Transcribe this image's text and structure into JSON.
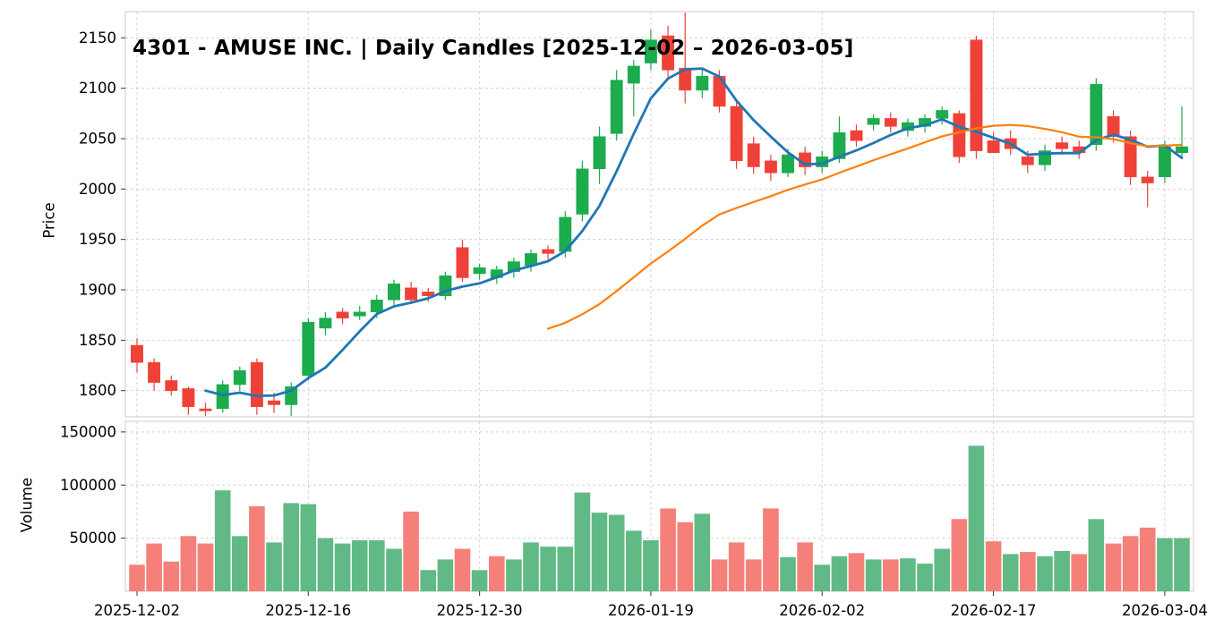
{
  "chart_data": {
    "type": "candlestick",
    "title": "4301 - AMUSE INC. | Daily Candles [2025-12-02 – 2026-03-05]",
    "ylabel_price": "Price",
    "ylabel_volume": "Volume",
    "price_ticks": [
      1800,
      1850,
      1900,
      1950,
      2000,
      2050,
      2100,
      2150
    ],
    "volume_ticks": [
      50000,
      100000,
      150000
    ],
    "price_ylim": [
      1774,
      2176
    ],
    "volume_ylim": [
      0,
      160000
    ],
    "x_tick_indices": [
      0,
      10,
      20,
      30,
      40,
      50,
      60
    ],
    "x_tick_labels": [
      "2025-12-02",
      "2025-12-16",
      "2025-12-30",
      "2026-01-19",
      "2026-02-02",
      "2026-02-17",
      "2026-03-04"
    ],
    "grid": true,
    "legend": "none",
    "colors": {
      "up": "#1cab4d",
      "down": "#ee4238",
      "vol_up": "#61ba86",
      "vol_down": "#f5807a",
      "ma_fast": "#1f77b4",
      "ma_slow": "#ff7f0e",
      "grid": "#c9c9c9",
      "spine": "#cccccc",
      "tick": "#333333"
    },
    "overlays": [
      {
        "name": "SMA5",
        "window": 5,
        "color_key": "ma_fast",
        "width": 2.8
      },
      {
        "name": "SMA25",
        "window": 25,
        "color_key": "ma_slow",
        "width": 2.2
      }
    ],
    "dates": [
      "2025-12-02",
      "2025-12-03",
      "2025-12-04",
      "2025-12-05",
      "2025-12-08",
      "2025-12-09",
      "2025-12-10",
      "2025-12-11",
      "2025-12-12",
      "2025-12-15",
      "2025-12-16",
      "2025-12-17",
      "2025-12-18",
      "2025-12-19",
      "2025-12-22",
      "2025-12-23",
      "2025-12-24",
      "2025-12-25",
      "2025-12-26",
      "2025-12-29",
      "2025-12-30",
      "2026-01-05",
      "2026-01-06",
      "2026-01-07",
      "2026-01-08",
      "2026-01-09",
      "2026-01-13",
      "2026-01-14",
      "2026-01-15",
      "2026-01-16",
      "2026-01-19",
      "2026-01-20",
      "2026-01-21",
      "2026-01-22",
      "2026-01-23",
      "2026-01-26",
      "2026-01-27",
      "2026-01-28",
      "2026-01-29",
      "2026-01-30",
      "2026-02-02",
      "2026-02-03",
      "2026-02-04",
      "2026-02-05",
      "2026-02-06",
      "2026-02-09",
      "2026-02-10",
      "2026-02-12",
      "2026-02-13",
      "2026-02-16",
      "2026-02-17",
      "2026-02-18",
      "2026-02-19",
      "2026-02-20",
      "2026-02-24",
      "2026-02-25",
      "2026-02-26",
      "2026-02-27",
      "2026-03-02",
      "2026-03-03",
      "2026-03-04",
      "2026-03-05"
    ],
    "ohlc": [
      [
        1845,
        1852,
        1818,
        1828
      ],
      [
        1828,
        1832,
        1800,
        1808
      ],
      [
        1810,
        1815,
        1795,
        1800
      ],
      [
        1802,
        1804,
        1776,
        1784
      ],
      [
        1782,
        1788,
        1775,
        1780
      ],
      [
        1782,
        1810,
        1778,
        1806
      ],
      [
        1806,
        1824,
        1800,
        1820
      ],
      [
        1828,
        1832,
        1776,
        1784
      ],
      [
        1790,
        1798,
        1778,
        1786
      ],
      [
        1786,
        1808,
        1775,
        1804
      ],
      [
        1815,
        1872,
        1810,
        1868
      ],
      [
        1862,
        1878,
        1855,
        1872
      ],
      [
        1878,
        1882,
        1866,
        1872
      ],
      [
        1874,
        1884,
        1870,
        1878
      ],
      [
        1878,
        1895,
        1872,
        1890
      ],
      [
        1890,
        1910,
        1884,
        1906
      ],
      [
        1902,
        1908,
        1886,
        1890
      ],
      [
        1898,
        1902,
        1888,
        1894
      ],
      [
        1894,
        1918,
        1890,
        1914
      ],
      [
        1942,
        1950,
        1908,
        1912
      ],
      [
        1916,
        1926,
        1910,
        1922
      ],
      [
        1912,
        1924,
        1906,
        1920
      ],
      [
        1918,
        1932,
        1912,
        1928
      ],
      [
        1924,
        1940,
        1918,
        1936
      ],
      [
        1940,
        1944,
        1930,
        1936
      ],
      [
        1938,
        1978,
        1932,
        1972
      ],
      [
        1975,
        2028,
        1968,
        2020
      ],
      [
        2020,
        2062,
        2005,
        2052
      ],
      [
        2055,
        2118,
        2048,
        2108
      ],
      [
        2105,
        2128,
        2072,
        2122
      ],
      [
        2125,
        2158,
        2118,
        2148
      ],
      [
        2152,
        2162,
        2108,
        2118
      ],
      [
        2120,
        2175,
        2085,
        2098
      ],
      [
        2098,
        2120,
        2090,
        2112
      ],
      [
        2112,
        2118,
        2076,
        2082
      ],
      [
        2082,
        2088,
        2020,
        2028
      ],
      [
        2045,
        2052,
        2015,
        2022
      ],
      [
        2028,
        2034,
        2008,
        2016
      ],
      [
        2016,
        2040,
        2012,
        2034
      ],
      [
        2036,
        2042,
        2014,
        2022
      ],
      [
        2022,
        2038,
        2016,
        2032
      ],
      [
        2030,
        2072,
        2026,
        2056
      ],
      [
        2058,
        2064,
        2042,
        2048
      ],
      [
        2064,
        2074,
        2058,
        2070
      ],
      [
        2070,
        2076,
        2056,
        2062
      ],
      [
        2058,
        2070,
        2052,
        2066
      ],
      [
        2062,
        2074,
        2056,
        2070
      ],
      [
        2070,
        2082,
        2064,
        2078
      ],
      [
        2075,
        2078,
        2026,
        2032
      ],
      [
        2148,
        2152,
        2030,
        2038
      ],
      [
        2048,
        2056,
        2036,
        2036
      ],
      [
        2050,
        2058,
        2034,
        2040
      ],
      [
        2032,
        2038,
        2016,
        2024
      ],
      [
        2024,
        2044,
        2018,
        2038
      ],
      [
        2046,
        2052,
        2034,
        2040
      ],
      [
        2042,
        2048,
        2030,
        2036
      ],
      [
        2044,
        2110,
        2038,
        2104
      ],
      [
        2072,
        2078,
        2046,
        2052
      ],
      [
        2052,
        2058,
        2004,
        2012
      ],
      [
        2012,
        2018,
        1982,
        2006
      ],
      [
        2012,
        2048,
        2006,
        2042
      ],
      [
        2036,
        2082,
        2030,
        2042
      ]
    ],
    "volume": [
      25000,
      45000,
      28000,
      52000,
      45000,
      95000,
      52000,
      80000,
      46000,
      83000,
      82000,
      50000,
      45000,
      48000,
      48000,
      40000,
      75000,
      20000,
      30000,
      40000,
      20000,
      33000,
      30000,
      46000,
      42000,
      42000,
      93000,
      74000,
      72000,
      57000,
      48000,
      78000,
      65000,
      73000,
      30000,
      46000,
      30000,
      78000,
      32000,
      46000,
      25000,
      33000,
      36000,
      30000,
      30000,
      31000,
      26000,
      40000,
      68000,
      137000,
      47000,
      35000,
      37000,
      33000,
      38000,
      35000,
      68000,
      45000,
      52000,
      60000,
      50000,
      50000
    ]
  }
}
